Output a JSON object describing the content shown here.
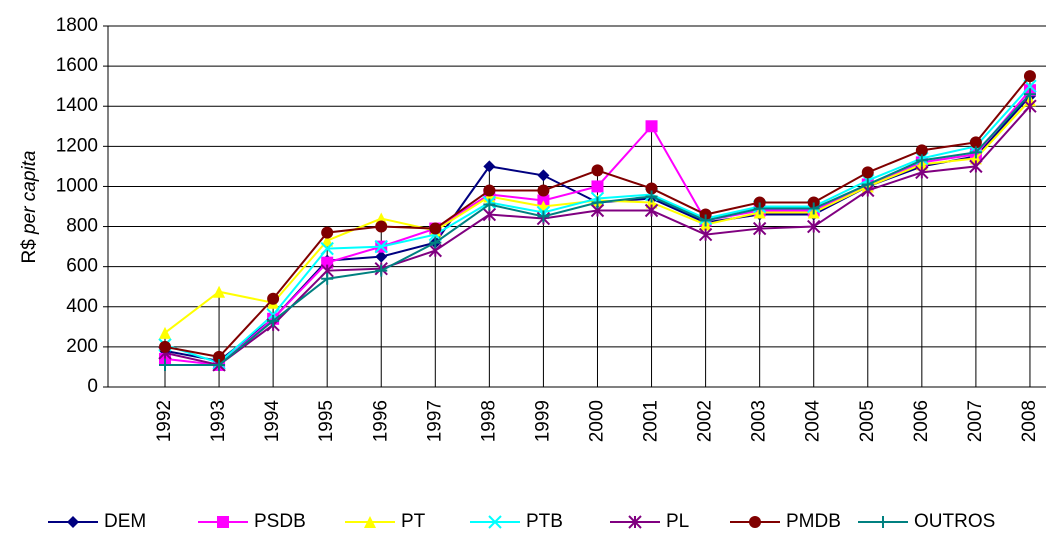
{
  "chart_data": {
    "type": "line",
    "y_label_parts": [
      "R$",
      "per capita"
    ],
    "categories": [
      "1992",
      "1993",
      "1994",
      "1995",
      "1996",
      "1997",
      "1998",
      "1999",
      "2000",
      "2001",
      "2002",
      "2003",
      "2004",
      "2005",
      "2006",
      "2007",
      "2008"
    ],
    "ylim": [
      0,
      1800
    ],
    "yticks": [
      0,
      200,
      400,
      600,
      800,
      1000,
      1200,
      1400,
      1600,
      1800
    ],
    "grid": true,
    "drop_lines": true,
    "legend": "bottom",
    "series": [
      {
        "name": "DEM",
        "color": "#000080",
        "marker": "diamond",
        "values": [
          180,
          130,
          340,
          630,
          650,
          720,
          1100,
          1055,
          920,
          940,
          820,
          860,
          860,
          1000,
          1100,
          1150,
          1450
        ]
      },
      {
        "name": "PSDB",
        "color": "#ff00ff",
        "marker": "square",
        "values": [
          140,
          110,
          340,
          620,
          700,
          790,
          960,
          930,
          1000,
          1300,
          830,
          880,
          880,
          1010,
          1120,
          1160,
          1480
        ]
      },
      {
        "name": "PT",
        "color": "#ffff00",
        "marker": "triangle",
        "values": [
          270,
          475,
          420,
          730,
          840,
          780,
          950,
          900,
          930,
          920,
          810,
          870,
          870,
          1000,
          1110,
          1140,
          1430
        ]
      },
      {
        "name": "PTB",
        "color": "#00ffff",
        "marker": "x",
        "values": [
          210,
          120,
          360,
          690,
          700,
          760,
          920,
          870,
          940,
          960,
          840,
          900,
          900,
          1030,
          1140,
          1200,
          1500
        ]
      },
      {
        "name": "PL",
        "color": "#800080",
        "marker": "star",
        "values": [
          170,
          110,
          310,
          580,
          590,
          680,
          860,
          840,
          880,
          880,
          760,
          790,
          800,
          980,
          1070,
          1100,
          1400
        ]
      },
      {
        "name": "PMDB",
        "color": "#800000",
        "marker": "circle",
        "values": [
          200,
          150,
          440,
          770,
          800,
          790,
          980,
          980,
          1080,
          990,
          860,
          920,
          920,
          1070,
          1180,
          1220,
          1550
        ]
      },
      {
        "name": "OUTROS",
        "color": "#008080",
        "marker": "plus",
        "values": [
          110,
          110,
          330,
          540,
          580,
          720,
          910,
          850,
          920,
          950,
          830,
          890,
          890,
          1010,
          1130,
          1170,
          1460
        ]
      }
    ]
  }
}
